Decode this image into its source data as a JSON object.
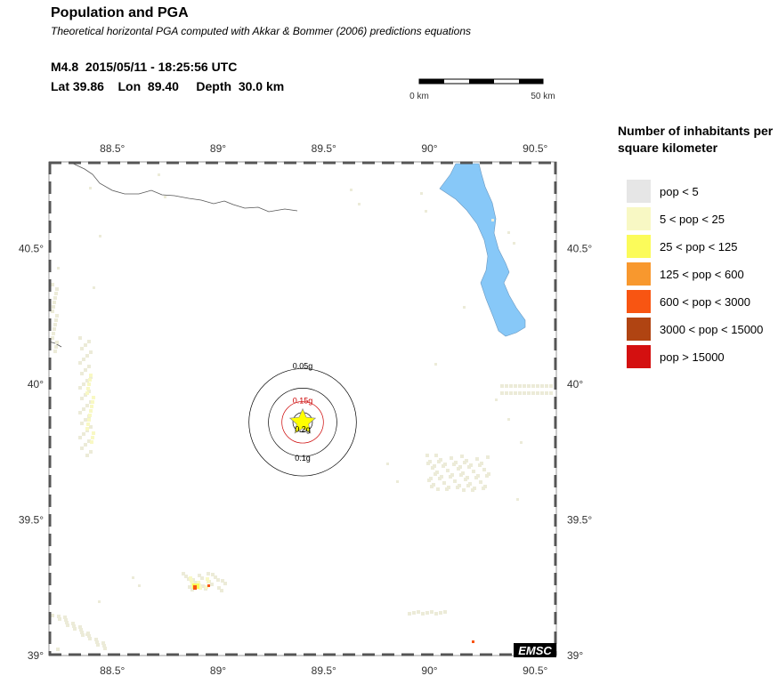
{
  "header": {
    "title": "Population and PGA",
    "subtitle": "Theoretical horizontal PGA computed with Akkar & Bommer (2006) predictions equations",
    "event_line": "M4.8  2015/05/11 - 18:25:56 UTC",
    "location_line": "Lat 39.86    Lon  89.40     Depth  30.0 km"
  },
  "scalebar": {
    "left_label": "0 km",
    "right_label": "50 km"
  },
  "map": {
    "lon_range": [
      88.2,
      90.6
    ],
    "lat_range": [
      39.0,
      40.82
    ],
    "lon_ticks": [
      {
        "value": 88.5,
        "label": "88.5°"
      },
      {
        "value": 89.0,
        "label": "89°"
      },
      {
        "value": 89.5,
        "label": "89.5°"
      },
      {
        "value": 90.0,
        "label": "90°"
      },
      {
        "value": 90.5,
        "label": "90.5°"
      }
    ],
    "lat_ticks": [
      {
        "value": 39.0,
        "label": "39°"
      },
      {
        "value": 39.5,
        "label": "39.5°"
      },
      {
        "value": 40.0,
        "label": "40°"
      },
      {
        "value": 40.5,
        "label": "40.5°"
      }
    ],
    "epicenter": {
      "lon": 89.4,
      "lat": 39.86
    },
    "pga_rings": [
      {
        "label": "0.05g",
        "radius_km": 22,
        "color": "#000000"
      },
      {
        "label": "0.1g",
        "radius_km": 14,
        "color": "#000000"
      },
      {
        "label": "0.15g",
        "radius_km": 8.5,
        "color": "#cc0000"
      },
      {
        "label": "0.2g",
        "radius_km": 4,
        "color": "#000000"
      }
    ],
    "logo": "EMSC"
  },
  "legend": {
    "title": "Number of inhabitants per square kilometer",
    "items": [
      {
        "label": "pop < 5",
        "color": "#e6e6e6"
      },
      {
        "label": "5 < pop < 25",
        "color": "#f8f8c4"
      },
      {
        "label": "25 < pop < 125",
        "color": "#fbfb5a"
      },
      {
        "label": "125 < pop < 600",
        "color": "#f8982e"
      },
      {
        "label": "600 < pop < 3000",
        "color": "#f85512"
      },
      {
        "label": "3000 < pop < 15000",
        "color": "#b04412"
      },
      {
        "label": "pop > 15000",
        "color": "#d41010"
      }
    ]
  },
  "colors": {
    "lake": "#87c8f8",
    "frame": "#555555",
    "population_low": "#ecebd8"
  }
}
